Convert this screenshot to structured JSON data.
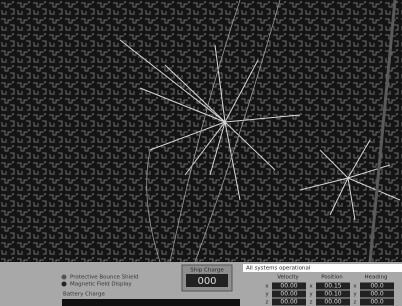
{
  "panel": {
    "options": [
      "Protective Bounce Shield",
      "Magnetic Field Display"
    ],
    "battery_label": "Battery Charge",
    "ship_charge": {
      "label": "Ship Charge",
      "value": "000"
    },
    "message": "All systems operational",
    "table": {
      "headers": [
        "Velocity",
        "Position",
        "Heading"
      ],
      "rows": [
        [
          "x",
          "00.00",
          "00.15",
          "00.0"
        ],
        [
          "y",
          "00.00",
          "00.10",
          "00.0"
        ],
        [
          "z",
          "00.00",
          "00.00",
          "00.0"
        ]
      ]
    }
  }
}
